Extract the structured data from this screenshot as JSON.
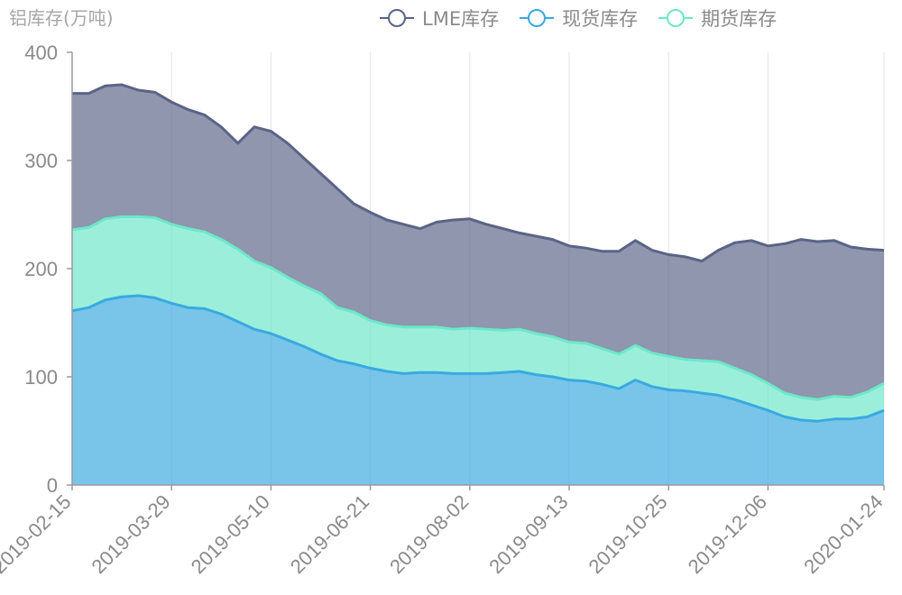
{
  "chart_data": {
    "type": "area",
    "y_axis_title": "铝库存(万吨)",
    "ylim": [
      0,
      400
    ],
    "yticks": [
      0,
      100,
      200,
      300,
      400
    ],
    "x_tick_labels": [
      "2019-02-15",
      "2019-03-29",
      "2019-05-10",
      "2019-06-21",
      "2019-08-02",
      "2019-09-13",
      "2019-10-25",
      "2019-12-06",
      "2020-01-24"
    ],
    "legend_position": "top-right",
    "stacked": true,
    "x": [
      "2019-02-15",
      "2019-02-22",
      "2019-03-01",
      "2019-03-08",
      "2019-03-15",
      "2019-03-22",
      "2019-03-29",
      "2019-04-05",
      "2019-04-12",
      "2019-04-19",
      "2019-04-26",
      "2019-05-03",
      "2019-05-10",
      "2019-05-17",
      "2019-05-24",
      "2019-05-31",
      "2019-06-07",
      "2019-06-14",
      "2019-06-21",
      "2019-06-28",
      "2019-07-05",
      "2019-07-12",
      "2019-07-19",
      "2019-07-26",
      "2019-08-02",
      "2019-08-09",
      "2019-08-16",
      "2019-08-23",
      "2019-08-30",
      "2019-09-06",
      "2019-09-13",
      "2019-09-20",
      "2019-09-27",
      "2019-10-04",
      "2019-10-11",
      "2019-10-18",
      "2019-10-25",
      "2019-11-01",
      "2019-11-08",
      "2019-11-15",
      "2019-11-22",
      "2019-11-29",
      "2019-12-06",
      "2019-12-13",
      "2019-12-20",
      "2019-12-27",
      "2020-01-03",
      "2020-01-10",
      "2020-01-17",
      "2020-01-24"
    ],
    "series": [
      {
        "name": "现货库存",
        "color": "#39aae0",
        "values": [
          161,
          164,
          171,
          174,
          175,
          173,
          168,
          164,
          163,
          158,
          151,
          144,
          140,
          134,
          128,
          121,
          115,
          112,
          108,
          105,
          103,
          104,
          104,
          103,
          103,
          103,
          104,
          105,
          102,
          100,
          97,
          96,
          93,
          89,
          97,
          91,
          88,
          87,
          85,
          83,
          79,
          74,
          69,
          63,
          60,
          59,
          61,
          61,
          63,
          69
        ]
      },
      {
        "name": "期货库存",
        "color": "#6ce8c8",
        "values": [
          75,
          74,
          75,
          74,
          73,
          74,
          73,
          73,
          71,
          69,
          67,
          63,
          61,
          58,
          56,
          56,
          49,
          48,
          44,
          43,
          43,
          42,
          42,
          41,
          42,
          41,
          39,
          39,
          38,
          37,
          35,
          35,
          33,
          32,
          32,
          31,
          31,
          29,
          30,
          31,
          29,
          28,
          25,
          22,
          21,
          20,
          21,
          20,
          23,
          25
        ]
      },
      {
        "name": "LME库存",
        "color": "#5a6487",
        "values": [
          126,
          124,
          123,
          122,
          117,
          116,
          113,
          110,
          108,
          104,
          98,
          124,
          126,
          124,
          118,
          111,
          110,
          100,
          100,
          97,
          95,
          91,
          97,
          101,
          101,
          97,
          94,
          89,
          90,
          90,
          89,
          88,
          90,
          95,
          97,
          95,
          94,
          95,
          92,
          103,
          116,
          124,
          127,
          138,
          146,
          146,
          144,
          139,
          132,
          123
        ]
      }
    ]
  },
  "legend": [
    {
      "label": "LME库存",
      "color": "#5a6487"
    },
    {
      "label": "现货库存",
      "color": "#39aae0"
    },
    {
      "label": "期货库存",
      "color": "#6ce8c8"
    }
  ]
}
